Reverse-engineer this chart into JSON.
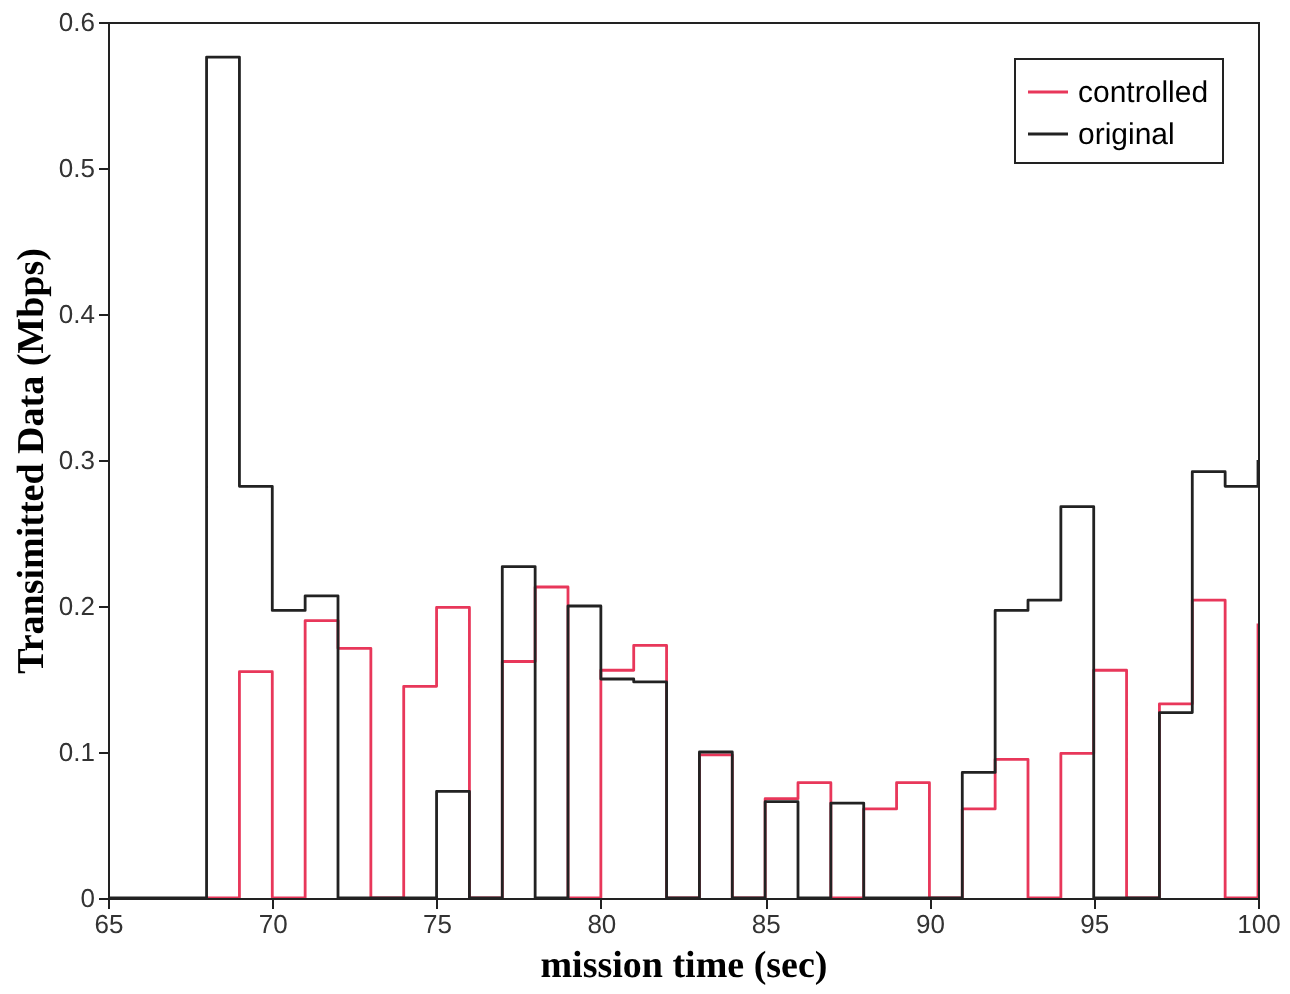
{
  "chart_data": {
    "type": "step",
    "xlabel": "mission time (sec)",
    "ylabel": "Transimitted Data (Mbps)",
    "x": [
      65,
      66,
      67,
      68,
      69,
      70,
      71,
      72,
      73,
      74,
      75,
      76,
      77,
      78,
      79,
      80,
      81,
      82,
      83,
      84,
      85,
      86,
      87,
      88,
      89,
      90,
      91,
      92,
      93,
      94,
      95,
      96,
      97,
      98,
      99,
      100
    ],
    "series": [
      {
        "name": "controlled",
        "color": "#e8375a",
        "values": [
          null,
          null,
          null,
          0,
          0.155,
          0,
          0.19,
          0.171,
          0,
          0.145,
          0.199,
          0,
          0.162,
          0.213,
          0,
          0.156,
          0.173,
          0,
          0.098,
          0,
          0.068,
          0.079,
          0,
          0.061,
          0.079,
          0,
          0.061,
          0.095,
          0,
          0.099,
          0.156,
          0,
          0.133,
          0.204,
          0,
          0.188
        ]
      },
      {
        "name": "original",
        "color": "#222222",
        "values": [
          0,
          0,
          0,
          0.576,
          0.282,
          0.197,
          0.207,
          0,
          0,
          0,
          0.073,
          0,
          0.227,
          0,
          0.2,
          0.15,
          0.148,
          0,
          0.1,
          0,
          0.066,
          0,
          0.065,
          0,
          0,
          0,
          0.086,
          0.197,
          0.204,
          0.268,
          0,
          0,
          0.127,
          0.292,
          0.282,
          0.3
        ]
      }
    ],
    "xlim": [
      65,
      100
    ],
    "xticks": [
      65,
      70,
      75,
      80,
      85,
      90,
      95,
      100
    ],
    "ylim": [
      0,
      0.6
    ],
    "yticks": [
      0,
      0.1,
      0.2,
      0.3,
      0.4,
      0.5,
      0.6
    ],
    "grid": false,
    "legend": "top right",
    "marker": "none",
    "line_style": "solid"
  }
}
